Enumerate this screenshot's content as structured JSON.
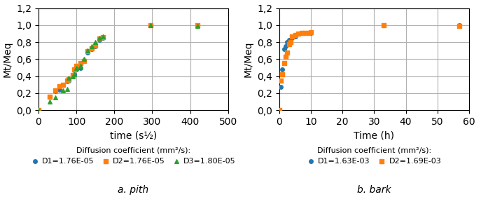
{
  "chart_data": [
    {
      "type": "scatter",
      "subtitle": "a. pith",
      "xlabel": "time (s½)",
      "ylabel": "Mt/Meq",
      "legend_title": "Diffusion coefficient (mm²/s):",
      "legend": "upper center",
      "grid": true,
      "xlim": [
        0,
        500
      ],
      "ylim": [
        0,
        1.2
      ],
      "xticks": [
        0,
        100,
        200,
        300,
        400,
        500
      ],
      "yticks": [
        {
          "value": 0,
          "label": "0,0"
        },
        {
          "value": 0.2,
          "label": "0,2"
        },
        {
          "value": 0.4,
          "label": "0,4"
        },
        {
          "value": 0.6,
          "label": "0,6"
        },
        {
          "value": 0.8,
          "label": "0,8"
        },
        {
          "value": 1.0,
          "label": "1,0"
        },
        {
          "value": 1.2,
          "label": "1,2"
        }
      ],
      "series": [
        {
          "name": "D1=1.76E-05",
          "marker": "o",
          "x": [
            0,
            30,
            45,
            55,
            65,
            75,
            80,
            90,
            95,
            100,
            110,
            120,
            130,
            140,
            150,
            160,
            170,
            295,
            420
          ],
          "values": [
            0,
            0.16,
            0.22,
            0.24,
            0.3,
            0.34,
            0.35,
            0.4,
            0.42,
            0.48,
            0.5,
            0.58,
            0.68,
            0.72,
            0.75,
            0.83,
            0.85,
            1.0,
            1.0
          ]
        },
        {
          "name": "D2=1.76E-05",
          "marker": "s",
          "x": [
            0,
            30,
            45,
            55,
            65,
            75,
            80,
            90,
            95,
            100,
            110,
            120,
            130,
            140,
            150,
            160,
            170,
            295,
            420
          ],
          "values": [
            0,
            0.16,
            0.23,
            0.28,
            0.3,
            0.35,
            0.36,
            0.41,
            0.48,
            0.52,
            0.55,
            0.58,
            0.69,
            0.73,
            0.76,
            0.84,
            0.86,
            1.0,
            1.0
          ]
        },
        {
          "name": "D3=1.80E-05",
          "marker": "^",
          "x": [
            0,
            30,
            45,
            65,
            75,
            80,
            90,
            95,
            100,
            110,
            120,
            130,
            140,
            150,
            160,
            170,
            295,
            420
          ],
          "values": [
            0,
            0.1,
            0.15,
            0.23,
            0.25,
            0.38,
            0.4,
            0.42,
            0.5,
            0.52,
            0.6,
            0.7,
            0.75,
            0.8,
            0.85,
            0.87,
            1.0,
            0.99
          ]
        }
      ]
    },
    {
      "type": "scatter",
      "subtitle": "b. bark",
      "xlabel": "Time (h)",
      "ylabel": "Mt/Meq",
      "legend_title": "Diffusion coefficient (mm²/s):",
      "legend": "upper center",
      "grid": true,
      "xlim": [
        0,
        60
      ],
      "ylim": [
        0,
        1.2
      ],
      "xticks": [
        0,
        10,
        20,
        30,
        40,
        50,
        60
      ],
      "yticks": [
        {
          "value": 0,
          "label": "0,0"
        },
        {
          "value": 0.2,
          "label": "0,2"
        },
        {
          "value": 0.4,
          "label": "0,4"
        },
        {
          "value": 0.6,
          "label": "0,6"
        },
        {
          "value": 0.8,
          "label": "0,8"
        },
        {
          "value": 1.0,
          "label": "1,0"
        },
        {
          "value": 1.2,
          "label": "1,2"
        }
      ],
      "series": [
        {
          "name": "D1=1.63E-03",
          "marker": "o",
          "x": [
            0,
            0.5,
            1,
            1.5,
            2,
            2.5,
            3,
            4,
            5,
            6,
            7,
            8,
            9,
            10,
            33,
            57
          ],
          "values": [
            0,
            0.27,
            0.48,
            0.72,
            0.75,
            0.8,
            0.83,
            0.85,
            0.87,
            0.9,
            0.91,
            0.91,
            0.91,
            0.91,
            1.0,
            1.0
          ]
        },
        {
          "name": "D2=1.69E-03",
          "marker": "s",
          "x": [
            0,
            0.5,
            1,
            1.5,
            2,
            2.5,
            3,
            3.5,
            4,
            5,
            6,
            7,
            8,
            9,
            10,
            33,
            57
          ],
          "values": [
            0,
            0.35,
            0.42,
            0.55,
            0.63,
            0.68,
            0.78,
            0.8,
            0.87,
            0.88,
            0.9,
            0.91,
            0.91,
            0.91,
            0.92,
            1.0,
            0.99
          ]
        }
      ]
    }
  ]
}
